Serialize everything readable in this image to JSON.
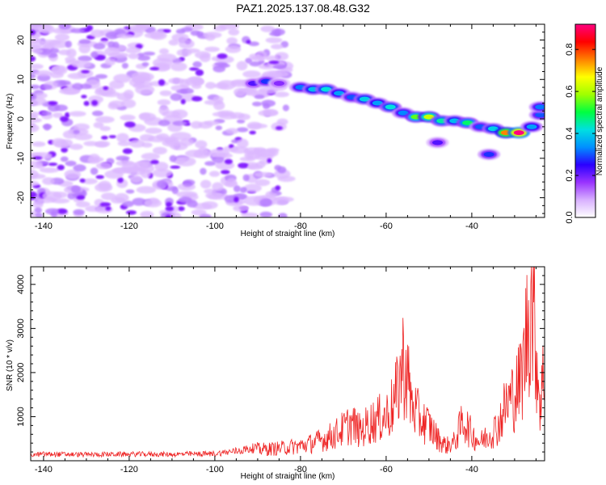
{
  "title": "PAZ1.2025.137.08.48.G32",
  "colors": {
    "snr_line": "#ee2222",
    "blob_faint": "#dcb8ff",
    "blob_mid": "#b57bff",
    "blob_strong": "#7a10ff",
    "axis": "#000000"
  },
  "chart_data": [
    {
      "type": "heatmap",
      "xlabel": "Height of straight line (km)",
      "ylabel": "Frequency (Hz)",
      "xlim": [
        -143,
        -23
      ],
      "ylim": [
        -25,
        24
      ],
      "xticks": [
        -140,
        -120,
        -100,
        -80,
        -60,
        -40
      ],
      "yticks": [
        -20,
        -10,
        0,
        10,
        20
      ],
      "colorbar": {
        "label": "Normalized spectral amplitude",
        "range": [
          0,
          0.92
        ],
        "ticks": [
          0.0,
          0.2,
          0.4,
          0.6,
          0.8
        ],
        "colormap": [
          "#ffffff",
          "#d8b0ff",
          "#9933ff",
          "#2a00ff",
          "#0090ff",
          "#00e0e0",
          "#00ff40",
          "#a0ff00",
          "#ffff00",
          "#ff8000",
          "#ff0000",
          "#ff0080"
        ]
      },
      "noise_region": {
        "x_range": [
          -143,
          -83
        ],
        "y_range": [
          -25,
          24
        ],
        "amplitude": 0.1
      },
      "signal_ridge": [
        {
          "x": -91,
          "y": 9,
          "amplitude": 0.22
        },
        {
          "x": -88,
          "y": 9.5,
          "amplitude": 0.28
        },
        {
          "x": -85,
          "y": 9,
          "amplitude": 0.18
        },
        {
          "x": -80,
          "y": 8,
          "amplitude": 0.32
        },
        {
          "x": -77,
          "y": 7.5,
          "amplitude": 0.38
        },
        {
          "x": -74,
          "y": 7.5,
          "amplitude": 0.42
        },
        {
          "x": -71,
          "y": 6.5,
          "amplitude": 0.35
        },
        {
          "x": -68,
          "y": 5.5,
          "amplitude": 0.3
        },
        {
          "x": -65,
          "y": 5,
          "amplitude": 0.4
        },
        {
          "x": -62,
          "y": 4,
          "amplitude": 0.35
        },
        {
          "x": -59,
          "y": 3,
          "amplitude": 0.42
        },
        {
          "x": -56,
          "y": 1.5,
          "amplitude": 0.33
        },
        {
          "x": -53,
          "y": 0.5,
          "amplitude": 0.55
        },
        {
          "x": -50,
          "y": 0.5,
          "amplitude": 0.62
        },
        {
          "x": -47,
          "y": -0.5,
          "amplitude": 0.45
        },
        {
          "x": -44,
          "y": -0.5,
          "amplitude": 0.38
        },
        {
          "x": -41,
          "y": -1,
          "amplitude": 0.48
        },
        {
          "x": -38,
          "y": -2,
          "amplitude": 0.3
        },
        {
          "x": -35,
          "y": -2.5,
          "amplitude": 0.4
        },
        {
          "x": -32,
          "y": -3.5,
          "amplitude": 0.75
        },
        {
          "x": -29,
          "y": -3.5,
          "amplitude": 0.92
        },
        {
          "x": -26,
          "y": -2,
          "amplitude": 0.35
        },
        {
          "x": -24,
          "y": 1,
          "amplitude": 0.3
        },
        {
          "x": -24,
          "y": 3,
          "amplitude": 0.32
        },
        {
          "x": -48,
          "y": -6,
          "amplitude": 0.22
        },
        {
          "x": -36,
          "y": -9,
          "amplitude": 0.28
        }
      ]
    },
    {
      "type": "line",
      "xlabel": "Height of straight line (km)",
      "ylabel": "SNR (10 * v/v)",
      "xlim": [
        -143,
        -23
      ],
      "ylim": [
        0,
        4400
      ],
      "xticks": [
        -140,
        -120,
        -100,
        -80,
        -60,
        -40
      ],
      "yticks": [
        1000,
        2000,
        3000,
        4000
      ],
      "series": [
        {
          "x": [
            -143,
            -140,
            -130,
            -120,
            -110,
            -100,
            -95,
            -90,
            -85,
            -80,
            -78,
            -76,
            -74,
            -72,
            -70,
            -68,
            -66,
            -64,
            -62,
            -60,
            -58,
            -57,
            -56,
            -55,
            -54,
            -52,
            -50,
            -48,
            -46,
            -44,
            -42,
            -40,
            -38,
            -36,
            -34,
            -32,
            -30,
            -29,
            -28,
            -27,
            -26,
            -25,
            -24,
            -23
          ],
          "y": [
            130,
            150,
            140,
            150,
            145,
            160,
            220,
            300,
            330,
            400,
            450,
            520,
            600,
            700,
            850,
            1000,
            780,
            1000,
            1100,
            1200,
            1550,
            2100,
            2650,
            2200,
            1500,
            1100,
            950,
            600,
            400,
            500,
            1100,
            700,
            500,
            700,
            900,
            1500,
            1800,
            2000,
            2500,
            3600,
            4350,
            3000,
            1500,
            2550
          ]
        }
      ]
    }
  ]
}
